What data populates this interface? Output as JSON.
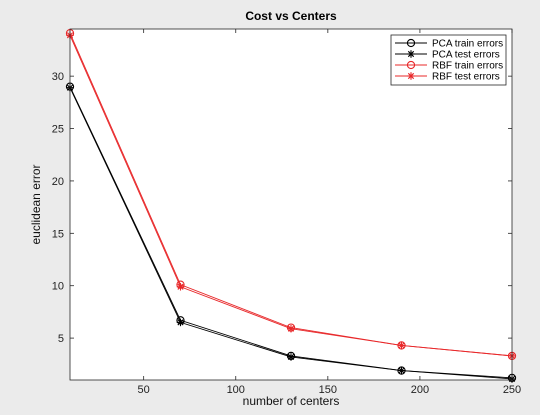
{
  "chart_data": {
    "type": "line",
    "title": "Cost vs Centers",
    "xlabel": "number of centers",
    "ylabel": "euclidean error",
    "xlim": [
      10,
      250
    ],
    "ylim": [
      1,
      34.5
    ],
    "xticks": [
      50,
      100,
      150,
      200,
      250
    ],
    "yticks": [
      5,
      10,
      15,
      20,
      25,
      30
    ],
    "grid": false,
    "legend_position": "top-right",
    "x": [
      10,
      70,
      130,
      190,
      250
    ],
    "series": [
      {
        "name": "PCA train errors",
        "values": [
          29.0,
          6.7,
          3.3,
          1.9,
          1.2
        ],
        "color": "#000000",
        "marker": "circle"
      },
      {
        "name": "PCA test errors",
        "values": [
          28.9,
          6.5,
          3.2,
          1.9,
          1.1
        ],
        "color": "#000000",
        "marker": "star"
      },
      {
        "name": "RBF train errors",
        "values": [
          34.1,
          10.1,
          6.0,
          4.3,
          3.3
        ],
        "color": "#e8282a",
        "marker": "circle"
      },
      {
        "name": "RBF test errors",
        "values": [
          33.9,
          9.9,
          5.9,
          4.3,
          3.3
        ],
        "color": "#e8282a",
        "marker": "star"
      }
    ]
  }
}
